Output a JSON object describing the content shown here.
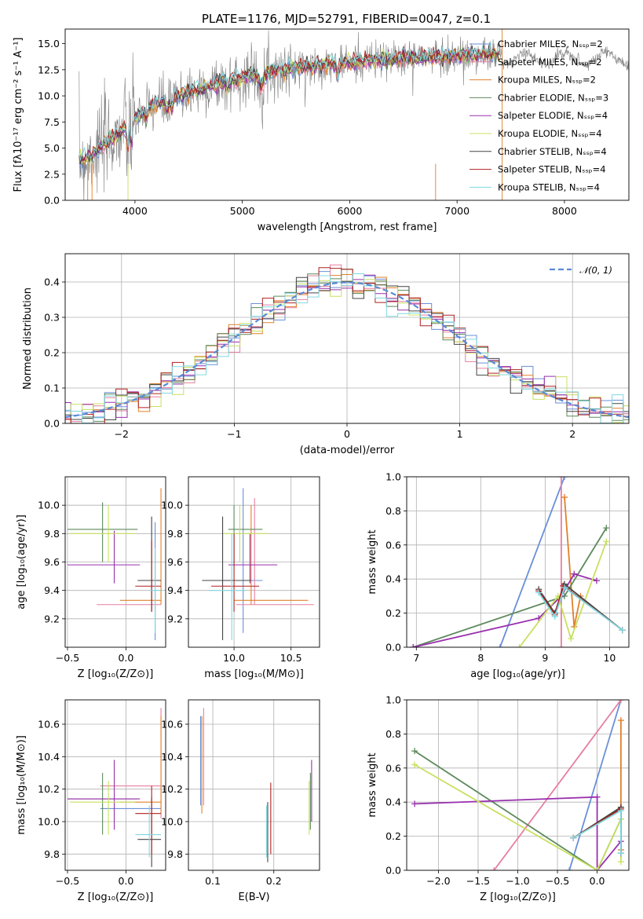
{
  "figure": {
    "title": "PLATE=1176, MJD=52791, FIBERID=0047, z=0.1",
    "colors": {
      "chabrier_miles": "#6a8fd8",
      "salpeter_miles": "#e77f9f",
      "kroupa_miles": "#e0802a",
      "chabrier_elodie": "#5c8a5c",
      "salpeter_elodie": "#9a2fae",
      "kroupa_elodie": "#c8e060",
      "chabrier_stelib": "#444444",
      "salpeter_stelib": "#b02020",
      "kroupa_stelib": "#80d8e0",
      "data": "#808080"
    }
  },
  "chart_data": [
    {
      "id": "spectrum",
      "type": "line",
      "xlabel": "wavelength [Angstrom, rest frame]",
      "ylabel": "Flux [fλ10⁻¹⁷ erg cm⁻² s⁻¹ A⁻¹]",
      "xlim": [
        3350,
        8600
      ],
      "ylim": [
        0,
        16.4
      ],
      "xticks": [
        "4000",
        "5000",
        "6000",
        "7000",
        "8000"
      ],
      "yticks": [
        "0.0",
        "2.5",
        "5.0",
        "7.5",
        "10.0",
        "12.5",
        "15.0"
      ],
      "legend_position": "right",
      "legend": [
        "Chabrier MILES, Nₛₛₚ=2",
        "Salpeter MILES, Nₛₛₚ=2",
        "Kroupa MILES, Nₛₛₚ=2",
        "Chabrier ELODIE, Nₛₛₚ=3",
        "Salpeter ELODIE, Nₛₛₚ=4",
        "Kroupa ELODIE, Nₛₛₚ=4",
        "Chabrier STELIB, Nₛₛₚ=4",
        "Salpeter STELIB, Nₛₛₚ=4",
        "Kroupa STELIB, Nₛₛₚ=4"
      ],
      "continuum": [
        [
          3500,
          3.8
        ],
        [
          3700,
          5.2
        ],
        [
          3900,
          6.8
        ],
        [
          4100,
          8.8
        ],
        [
          4300,
          9.6
        ],
        [
          4500,
          10.3
        ],
        [
          4700,
          10.9
        ],
        [
          4900,
          11.5
        ],
        [
          5100,
          12.0
        ],
        [
          5300,
          12.4
        ],
        [
          5500,
          12.7
        ],
        [
          5700,
          12.9
        ],
        [
          5900,
          13.1
        ],
        [
          6100,
          13.3
        ],
        [
          6300,
          13.4
        ],
        [
          6500,
          13.6
        ],
        [
          6700,
          13.7
        ],
        [
          6900,
          13.8
        ],
        [
          7100,
          13.9
        ],
        [
          7300,
          14.0
        ],
        [
          7400,
          14.0
        ]
      ]
    },
    {
      "id": "residuals",
      "type": "histogram",
      "xlabel": "(data-model)/error",
      "ylabel": "Normed distribution",
      "xlim": [
        -2.5,
        2.5
      ],
      "ylim": [
        0,
        0.48
      ],
      "xticks": [
        "−2",
        "−1",
        "0",
        "1",
        "2"
      ],
      "yticks": [
        "0.0",
        "0.1",
        "0.2",
        "0.3",
        "0.4"
      ],
      "legend": [
        "𝒩(0, 1)"
      ],
      "legend_position": "top-right",
      "bin_width": 0.1
    },
    {
      "id": "age_vs_z",
      "type": "errorbar",
      "xlabel": "Z [log₁₀(Z/Z⊙)]",
      "ylabel": "age  [log₁₀(age/yr)]",
      "xlim": [
        -0.52,
        0.34
      ],
      "ylim": [
        9.0,
        10.2
      ],
      "xticks": [
        "−0.5",
        "0.0"
      ],
      "yticks": [
        "9.2",
        "9.4",
        "9.6",
        "9.8",
        "10.0"
      ],
      "points": [
        {
          "s": "chabrier_miles",
          "x": 0.25,
          "xl": 0.25,
          "xh": 0.25,
          "y": 9.45,
          "yl": 9.05,
          "yh": 9.88
        },
        {
          "s": "salpeter_miles",
          "x": 0.0,
          "xl": -0.25,
          "xh": 0.3,
          "y": 9.3,
          "yl": 9.3,
          "yh": 9.3
        },
        {
          "s": "kroupa_miles",
          "x": 0.3,
          "xl": -0.05,
          "xh": 0.3,
          "y": 9.33,
          "yl": 9.3,
          "yh": 10.12
        },
        {
          "s": "chabrier_elodie",
          "x": -0.2,
          "xl": -0.5,
          "xh": 0.1,
          "y": 9.83,
          "yl": 9.6,
          "yh": 10.02
        },
        {
          "s": "salpeter_elodie",
          "x": -0.1,
          "xl": -0.5,
          "xh": 0.12,
          "y": 9.58,
          "yl": 9.45,
          "yh": 9.82
        },
        {
          "s": "kroupa_elodie",
          "x": -0.15,
          "xl": -0.48,
          "xh": 0.08,
          "y": 9.8,
          "yl": 9.6,
          "yh": 10.0
        },
        {
          "s": "chabrier_stelib",
          "x": 0.22,
          "xl": 0.1,
          "xh": 0.3,
          "y": 9.47,
          "yl": 9.25,
          "yh": 9.92
        },
        {
          "s": "salpeter_stelib",
          "x": 0.22,
          "xl": 0.08,
          "xh": 0.3,
          "y": 9.43,
          "yl": 9.25,
          "yh": 9.75
        },
        {
          "s": "kroupa_stelib",
          "x": 0.25,
          "xl": 0.2,
          "xh": 0.3,
          "y": 9.4,
          "yl": 9.1,
          "yh": 9.7
        }
      ]
    },
    {
      "id": "age_vs_mass",
      "type": "errorbar",
      "xlabel": "mass [log₁₀(M/M⊙)]",
      "ylabel": "",
      "xlim": [
        9.6,
        10.75
      ],
      "ylim": [
        9.0,
        10.2
      ],
      "xticks": [
        "10.0",
        "10.5"
      ],
      "yticks": [
        "9.2",
        "9.4",
        "9.6",
        "9.8",
        "10.0"
      ],
      "points": [
        {
          "s": "chabrier_miles",
          "x": 10.08,
          "xl": 9.98,
          "xh": 10.25,
          "y": 9.47,
          "yl": 9.1,
          "yh": 10.12
        },
        {
          "s": "salpeter_miles",
          "x": 10.18,
          "xl": 10.02,
          "xh": 10.7,
          "y": 9.3,
          "yl": 9.3,
          "yh": 10.05
        },
        {
          "s": "kroupa_miles",
          "x": 10.15,
          "xl": 10.0,
          "xh": 10.65,
          "y": 9.33,
          "yl": 9.3,
          "yh": 10.0
        },
        {
          "s": "chabrier_elodie",
          "x": 10.0,
          "xl": 9.95,
          "xh": 10.25,
          "y": 9.83,
          "yl": 9.6,
          "yh": 10.0
        },
        {
          "s": "salpeter_elodie",
          "x": 10.14,
          "xl": 9.95,
          "xh": 10.38,
          "y": 9.58,
          "yl": 9.45,
          "yh": 9.8
        },
        {
          "s": "kroupa_elodie",
          "x": 10.05,
          "xl": 9.9,
          "xh": 10.3,
          "y": 9.8,
          "yl": 9.6,
          "yh": 10.0
        },
        {
          "s": "chabrier_stelib",
          "x": 9.9,
          "xl": 9.72,
          "xh": 10.15,
          "y": 9.47,
          "yl": 9.05,
          "yh": 9.92
        },
        {
          "s": "salpeter_stelib",
          "x": 10.0,
          "xl": 9.8,
          "xh": 10.22,
          "y": 9.43,
          "yl": 9.25,
          "yh": 9.8
        },
        {
          "s": "kroupa_stelib",
          "x": 9.98,
          "xl": 9.78,
          "xh": 10.1,
          "y": 9.4,
          "yl": 9.05,
          "yh": 9.8
        }
      ]
    },
    {
      "id": "weight_vs_age",
      "type": "line",
      "xlabel": "age  [log₁₀(age/yr)]",
      "ylabel": "mass weight",
      "xlim": [
        6.85,
        10.3
      ],
      "ylim": [
        0,
        1.0
      ],
      "xticks": [
        "7",
        "8",
        "9",
        "10"
      ],
      "yticks": [
        "0.0",
        "0.2",
        "0.4",
        "0.6",
        "0.8",
        "1.0"
      ],
      "series": [
        {
          "s": "chabrier_miles",
          "x": [
            8.3,
            9.3
          ],
          "y": [
            0.0,
            1.0
          ]
        },
        {
          "s": "salpeter_miles",
          "x": [
            9.25,
            9.25
          ],
          "y": [
            0.0,
            1.0
          ]
        },
        {
          "s": "kroupa_miles",
          "x": [
            9.3,
            9.45,
            9.55
          ],
          "y": [
            0.88,
            0.12,
            0.3
          ]
        },
        {
          "s": "chabrier_elodie",
          "x": [
            6.95,
            9.3,
            9.95
          ],
          "y": [
            0.0,
            0.3,
            0.7
          ]
        },
        {
          "s": "salpeter_elodie",
          "x": [
            6.95,
            8.9,
            9.25,
            9.45,
            9.8
          ],
          "y": [
            0.0,
            0.17,
            0.3,
            0.43,
            0.39
          ]
        },
        {
          "s": "kroupa_elodie",
          "x": [
            8.6,
            9.2,
            9.4,
            9.95
          ],
          "y": [
            0.0,
            0.3,
            0.05,
            0.62
          ]
        },
        {
          "s": "chabrier_stelib",
          "x": [
            8.9,
            9.15,
            9.3,
            10.2
          ],
          "y": [
            0.34,
            0.2,
            0.37,
            0.1
          ]
        },
        {
          "s": "salpeter_stelib",
          "x": [
            8.9,
            9.15,
            9.28,
            10.2
          ],
          "y": [
            0.33,
            0.19,
            0.36,
            0.1
          ]
        },
        {
          "s": "kroupa_stelib",
          "x": [
            8.9,
            9.15,
            9.3,
            10.2
          ],
          "y": [
            0.32,
            0.18,
            0.35,
            0.1
          ]
        }
      ]
    },
    {
      "id": "mass_vs_z",
      "type": "errorbar",
      "xlabel": "Z [log₁₀(Z/Z⊙)]",
      "ylabel": "mass [log₁₀(M/M⊙)]",
      "xlim": [
        -0.52,
        0.34
      ],
      "ylim": [
        9.7,
        10.75
      ],
      "xticks": [
        "−0.5",
        "0.0"
      ],
      "yticks": [
        "9.8",
        "10.0",
        "10.2",
        "10.4",
        "10.6"
      ],
      "points": [
        {
          "s": "chabrier_miles",
          "x": 0.0,
          "xl": -0.22,
          "xh": 0.3,
          "y": 10.08,
          "yl": 10.08,
          "yh": 10.08
        },
        {
          "s": "salpeter_miles",
          "x": 0.3,
          "xl": -0.22,
          "xh": 0.3,
          "y": 10.22,
          "yl": 10.02,
          "yh": 10.7
        },
        {
          "s": "kroupa_miles",
          "x": 0.3,
          "xl": -0.05,
          "xh": 0.3,
          "y": 10.12,
          "yl": 10.05,
          "yh": 10.65
        },
        {
          "s": "chabrier_elodie",
          "x": -0.2,
          "xl": -0.5,
          "xh": 0.1,
          "y": 10.14,
          "yl": 9.92,
          "yh": 10.3
        },
        {
          "s": "salpeter_elodie",
          "x": -0.1,
          "xl": -0.5,
          "xh": 0.12,
          "y": 10.14,
          "yl": 9.95,
          "yh": 10.38
        },
        {
          "s": "kroupa_elodie",
          "x": -0.15,
          "xl": -0.48,
          "xh": 0.08,
          "y": 10.12,
          "yl": 9.92,
          "yh": 10.25
        },
        {
          "s": "chabrier_stelib",
          "x": 0.22,
          "xl": 0.1,
          "xh": 0.3,
          "y": 9.89,
          "yl": 9.72,
          "yh": 10.15
        },
        {
          "s": "salpeter_stelib",
          "x": 0.22,
          "xl": 0.08,
          "xh": 0.3,
          "y": 10.05,
          "yl": 9.8,
          "yh": 10.22
        },
        {
          "s": "kroupa_stelib",
          "x": 0.2,
          "xl": 0.08,
          "xh": 0.3,
          "y": 9.92,
          "yl": 9.78,
          "yh": 10.1
        }
      ]
    },
    {
      "id": "mass_vs_ebv",
      "type": "errorbar",
      "xlabel": "E(B-V)",
      "ylabel": "",
      "xlim": [
        0.06,
        0.275
      ],
      "ylim": [
        9.7,
        10.75
      ],
      "xticks": [
        "0.1",
        "0.2"
      ],
      "yticks": [
        "9.8",
        "10.0",
        "10.2",
        "10.4",
        "10.6"
      ],
      "points": [
        {
          "s": "chabrier_miles",
          "x": 0.08,
          "y": 10.4,
          "yl": 10.1,
          "yh": 10.65
        },
        {
          "s": "salpeter_miles",
          "x": 0.085,
          "y": 10.4,
          "yl": 10.1,
          "yh": 10.7
        },
        {
          "s": "kroupa_miles",
          "x": 0.082,
          "y": 10.35,
          "yl": 10.05,
          "yh": 10.65
        },
        {
          "s": "chabrier_elodie",
          "x": 0.26,
          "y": 10.15,
          "yl": 9.95,
          "yh": 10.3
        },
        {
          "s": "salpeter_elodie",
          "x": 0.262,
          "y": 10.15,
          "yl": 10.0,
          "yh": 10.38
        },
        {
          "s": "kroupa_elodie",
          "x": 0.258,
          "y": 10.1,
          "yl": 9.92,
          "yh": 10.25
        },
        {
          "s": "chabrier_stelib",
          "x": 0.19,
          "y": 9.95,
          "yl": 9.75,
          "yh": 10.12
        },
        {
          "s": "salpeter_stelib",
          "x": 0.195,
          "y": 10.05,
          "yl": 9.8,
          "yh": 10.24
        },
        {
          "s": "kroupa_stelib",
          "x": 0.188,
          "y": 9.9,
          "yl": 9.78,
          "yh": 10.1
        }
      ]
    },
    {
      "id": "weight_vs_z",
      "type": "line",
      "xlabel": "Z [log₁₀(Z/Z⊙)]",
      "ylabel": "mass weight",
      "xlim": [
        -2.4,
        0.4
      ],
      "ylim": [
        0,
        1.0
      ],
      "xticks": [
        "−2.0",
        "−1.5",
        "−1.0",
        "−0.5",
        "0.0"
      ],
      "yticks": [
        "0.0",
        "0.2",
        "0.4",
        "0.6",
        "0.8",
        "1.0"
      ],
      "series": [
        {
          "s": "chabrier_miles",
          "x": [
            -0.35,
            0.3
          ],
          "y": [
            0.0,
            1.0
          ]
        },
        {
          "s": "salpeter_miles",
          "x": [
            -1.3,
            0.3
          ],
          "y": [
            0.0,
            1.0
          ]
        },
        {
          "s": "kroupa_miles",
          "x": [
            0.3,
            0.3
          ],
          "y": [
            0.12,
            0.88
          ]
        },
        {
          "s": "chabrier_elodie",
          "x": [
            -2.3,
            0.0,
            0.3
          ],
          "y": [
            0.7,
            0.0,
            0.3
          ]
        },
        {
          "s": "salpeter_elodie",
          "x": [
            -2.3,
            0.0,
            0.0,
            0.3
          ],
          "y": [
            0.39,
            0.43,
            0.0,
            0.17
          ]
        },
        {
          "s": "kroupa_elodie",
          "x": [
            -2.3,
            0.0,
            0.3,
            0.3
          ],
          "y": [
            0.62,
            0.0,
            0.3,
            0.05
          ]
        },
        {
          "s": "chabrier_stelib",
          "x": [
            -0.3,
            0.3,
            0.3
          ],
          "y": [
            0.19,
            0.37,
            0.1
          ]
        },
        {
          "s": "salpeter_stelib",
          "x": [
            -0.3,
            0.3,
            0.3
          ],
          "y": [
            0.19,
            0.36,
            0.1
          ]
        },
        {
          "s": "kroupa_stelib",
          "x": [
            -0.3,
            0.3,
            0.3
          ],
          "y": [
            0.19,
            0.35,
            0.1
          ]
        }
      ]
    }
  ]
}
